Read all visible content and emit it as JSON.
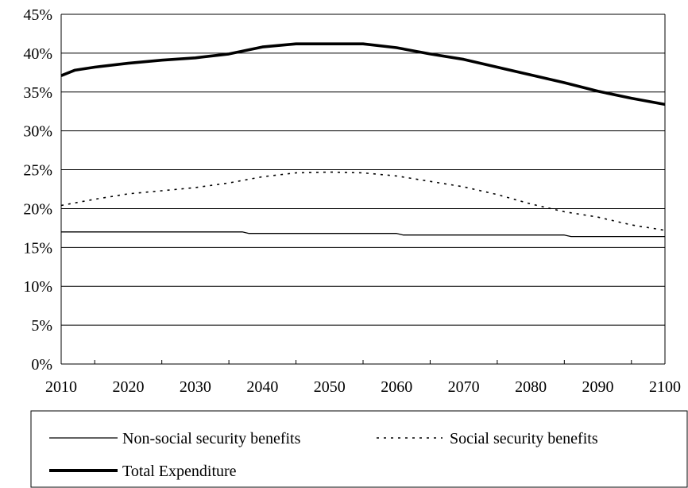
{
  "chart_data": {
    "type": "line",
    "title": "",
    "xlabel": "",
    "ylabel": "",
    "xlim": [
      2010,
      2100
    ],
    "ylim": [
      0,
      45
    ],
    "x_ticks": [
      2010,
      2020,
      2030,
      2040,
      2050,
      2060,
      2070,
      2080,
      2090,
      2100
    ],
    "x_tick_labels": [
      "2010",
      "2020",
      "2030",
      "2040",
      "2050",
      "2060",
      "2070",
      "2080",
      "2090",
      "2100"
    ],
    "y_ticks": [
      0,
      5,
      10,
      15,
      20,
      25,
      30,
      35,
      40,
      45
    ],
    "y_tick_labels": [
      "0%",
      "5%",
      "10%",
      "15%",
      "20%",
      "25%",
      "30%",
      "35%",
      "40%",
      "45%"
    ],
    "grid": "horizontal",
    "legend_position": "bottom",
    "series": [
      {
        "name": "Non-social security benefits",
        "style": "thin-solid",
        "color": "#000000",
        "x": [
          2010,
          2037,
          2038,
          2060,
          2061,
          2085,
          2086,
          2100
        ],
        "y": [
          17.0,
          17.0,
          16.8,
          16.8,
          16.6,
          16.6,
          16.4,
          16.4
        ]
      },
      {
        "name": "Social security benefits",
        "style": "dotted",
        "color": "#000000",
        "x": [
          2010,
          2015,
          2020,
          2025,
          2030,
          2035,
          2040,
          2045,
          2050,
          2055,
          2060,
          2065,
          2070,
          2075,
          2080,
          2085,
          2090,
          2095,
          2100
        ],
        "y": [
          20.4,
          21.2,
          21.9,
          22.3,
          22.7,
          23.3,
          24.1,
          24.6,
          24.7,
          24.6,
          24.2,
          23.5,
          22.8,
          21.8,
          20.6,
          19.6,
          18.9,
          17.9,
          17.2
        ]
      },
      {
        "name": "Total Expenditure",
        "style": "thick-solid",
        "color": "#000000",
        "x": [
          2010,
          2012,
          2015,
          2020,
          2025,
          2030,
          2035,
          2040,
          2045,
          2050,
          2055,
          2060,
          2065,
          2070,
          2075,
          2080,
          2085,
          2090,
          2095,
          2100
        ],
        "y": [
          37.1,
          37.8,
          38.2,
          38.7,
          39.1,
          39.4,
          39.9,
          40.8,
          41.2,
          41.2,
          41.2,
          40.7,
          39.9,
          39.2,
          38.2,
          37.2,
          36.2,
          35.1,
          34.2,
          33.4
        ]
      }
    ]
  }
}
